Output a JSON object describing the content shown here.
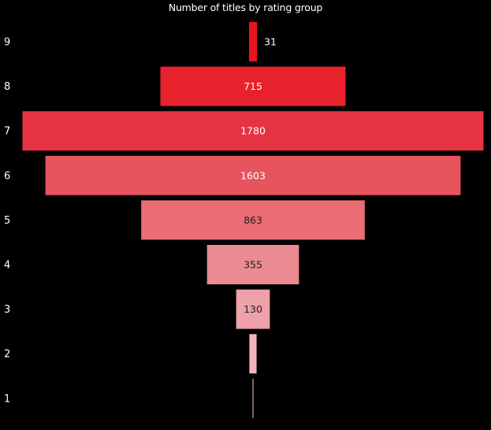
{
  "chart_data": {
    "type": "funnel",
    "title": "Number of titles by rating group",
    "categories": [
      "9",
      "8",
      "7",
      "6",
      "5",
      "4",
      "3",
      "2",
      "1"
    ],
    "values": [
      31,
      715,
      1780,
      1603,
      863,
      355,
      130,
      28,
      2
    ],
    "value_labels": [
      "31",
      "715",
      "1780",
      "1603",
      "863",
      "355",
      "130",
      "",
      ""
    ],
    "bar_colors": [
      "#e8141f",
      "#e8222c",
      "#e63343",
      "#e6545e",
      "#e96d72",
      "#eb8a91",
      "#eea1a8",
      "#f1b3b9",
      "#f4c9cd"
    ],
    "label_colors": [
      "#ffffff",
      "#ffffff",
      "#ffffff",
      "#ffffff",
      "#222222",
      "#222222",
      "#222222",
      "#222222",
      "#222222"
    ],
    "label_outside": [
      true,
      false,
      false,
      false,
      false,
      false,
      false,
      false,
      false
    ],
    "grid": false,
    "legend": "none",
    "background": "#000000"
  }
}
